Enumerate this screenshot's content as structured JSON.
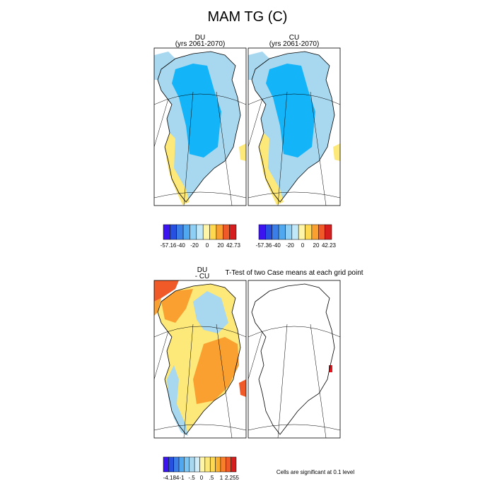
{
  "title": "MAM TG (C)",
  "panels": [
    {
      "label": "DU",
      "sublabel": "(yrs 2061-2070)"
    },
    {
      "label": "CU",
      "sublabel": "(yrs 2061-2070)"
    },
    {
      "label": "DU",
      "sublabel": "- CU"
    },
    {
      "label": "T-Test of two Case means at each grid point"
    }
  ],
  "colorbars": [
    {
      "labels": [
        "-57.16",
        "-40",
        "-20",
        "0",
        "20",
        "42.73"
      ]
    },
    {
      "labels": [
        "-57.36",
        "-40",
        "-20",
        "0",
        "20",
        "42.23"
      ]
    },
    {
      "labels": [
        "-4.184",
        "-1",
        "-.5",
        "0",
        ".5",
        "1",
        "2.255"
      ]
    }
  ],
  "note": "Cells are significant at 0.1 level"
}
